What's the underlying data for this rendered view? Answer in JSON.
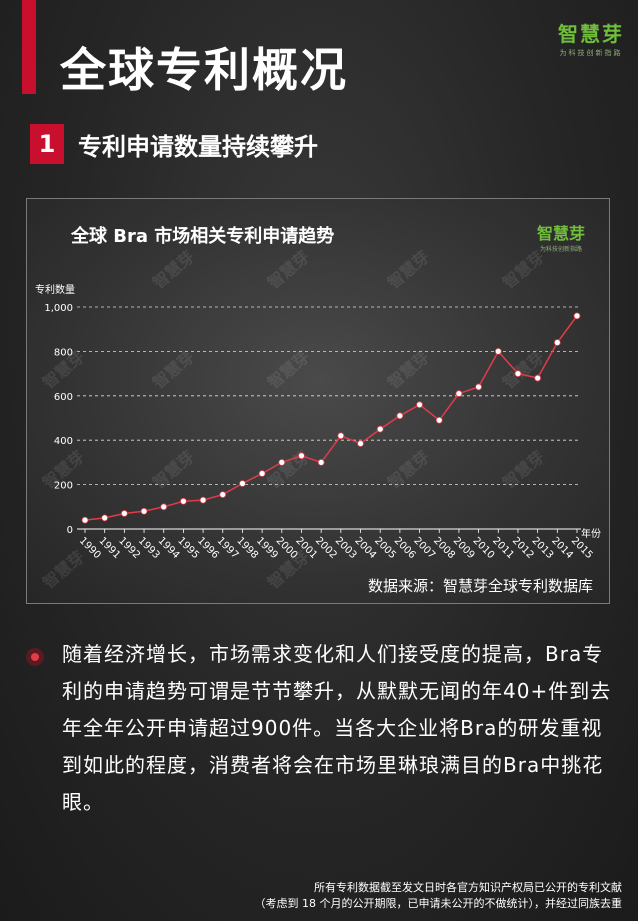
{
  "page": {
    "title": "全球专利概况",
    "brand": {
      "name": "智慧芽",
      "tagline": "为科技创新指路"
    },
    "section": {
      "number": "1",
      "title": "专利申请数量持续攀升"
    },
    "body_text": "随着经济增长，市场需求变化和人们接受度的提高，Bra专利的申请趋势可谓是节节攀升，从默默无闻的年40+件到去年全年公开申请超过900件。当各大企业将Bra的研发重视到如此的程度，消费者将会在市场里琳琅满目的Bra中挑花眼。",
    "footnote": [
      "所有专利数据截至发文日时各官方知识产权局已公开的专利文献",
      "（考虑到 18 个月的公开期限，已申请未公开的不做统计），并经过同族去重"
    ],
    "colors": {
      "accent": "#c8102e",
      "brand": "#6fbf3a",
      "line": "#e23b4a"
    }
  },
  "chart_data": {
    "type": "line",
    "title": "全球 Bra 市场相关专利申请趋势",
    "ylabel": "专利数量",
    "xlabel": "年份",
    "source": "数据来源：智慧芽全球专利数据库",
    "watermark": "智慧芽",
    "ylim": [
      0,
      1000
    ],
    "yticks": [
      0,
      200,
      400,
      600,
      800,
      1000
    ],
    "ytick_labels": [
      "0",
      "200",
      "400",
      "600",
      "800",
      "1,000"
    ],
    "grid": true,
    "x": [
      "1990",
      "1991",
      "1992",
      "1993",
      "1994",
      "1995",
      "1996",
      "1997",
      "1998",
      "1999",
      "2000",
      "2001",
      "2002",
      "2003",
      "2004",
      "2005",
      "2006",
      "2007",
      "2008",
      "2009",
      "2010",
      "2011",
      "2012",
      "2013",
      "2014",
      "2015"
    ],
    "series": [
      {
        "values": [
          40,
          50,
          70,
          80,
          100,
          125,
          130,
          155,
          205,
          250,
          300,
          330,
          300,
          420,
          385,
          450,
          510,
          560,
          490,
          610,
          640,
          800,
          700,
          680,
          840,
          960
        ]
      }
    ]
  }
}
